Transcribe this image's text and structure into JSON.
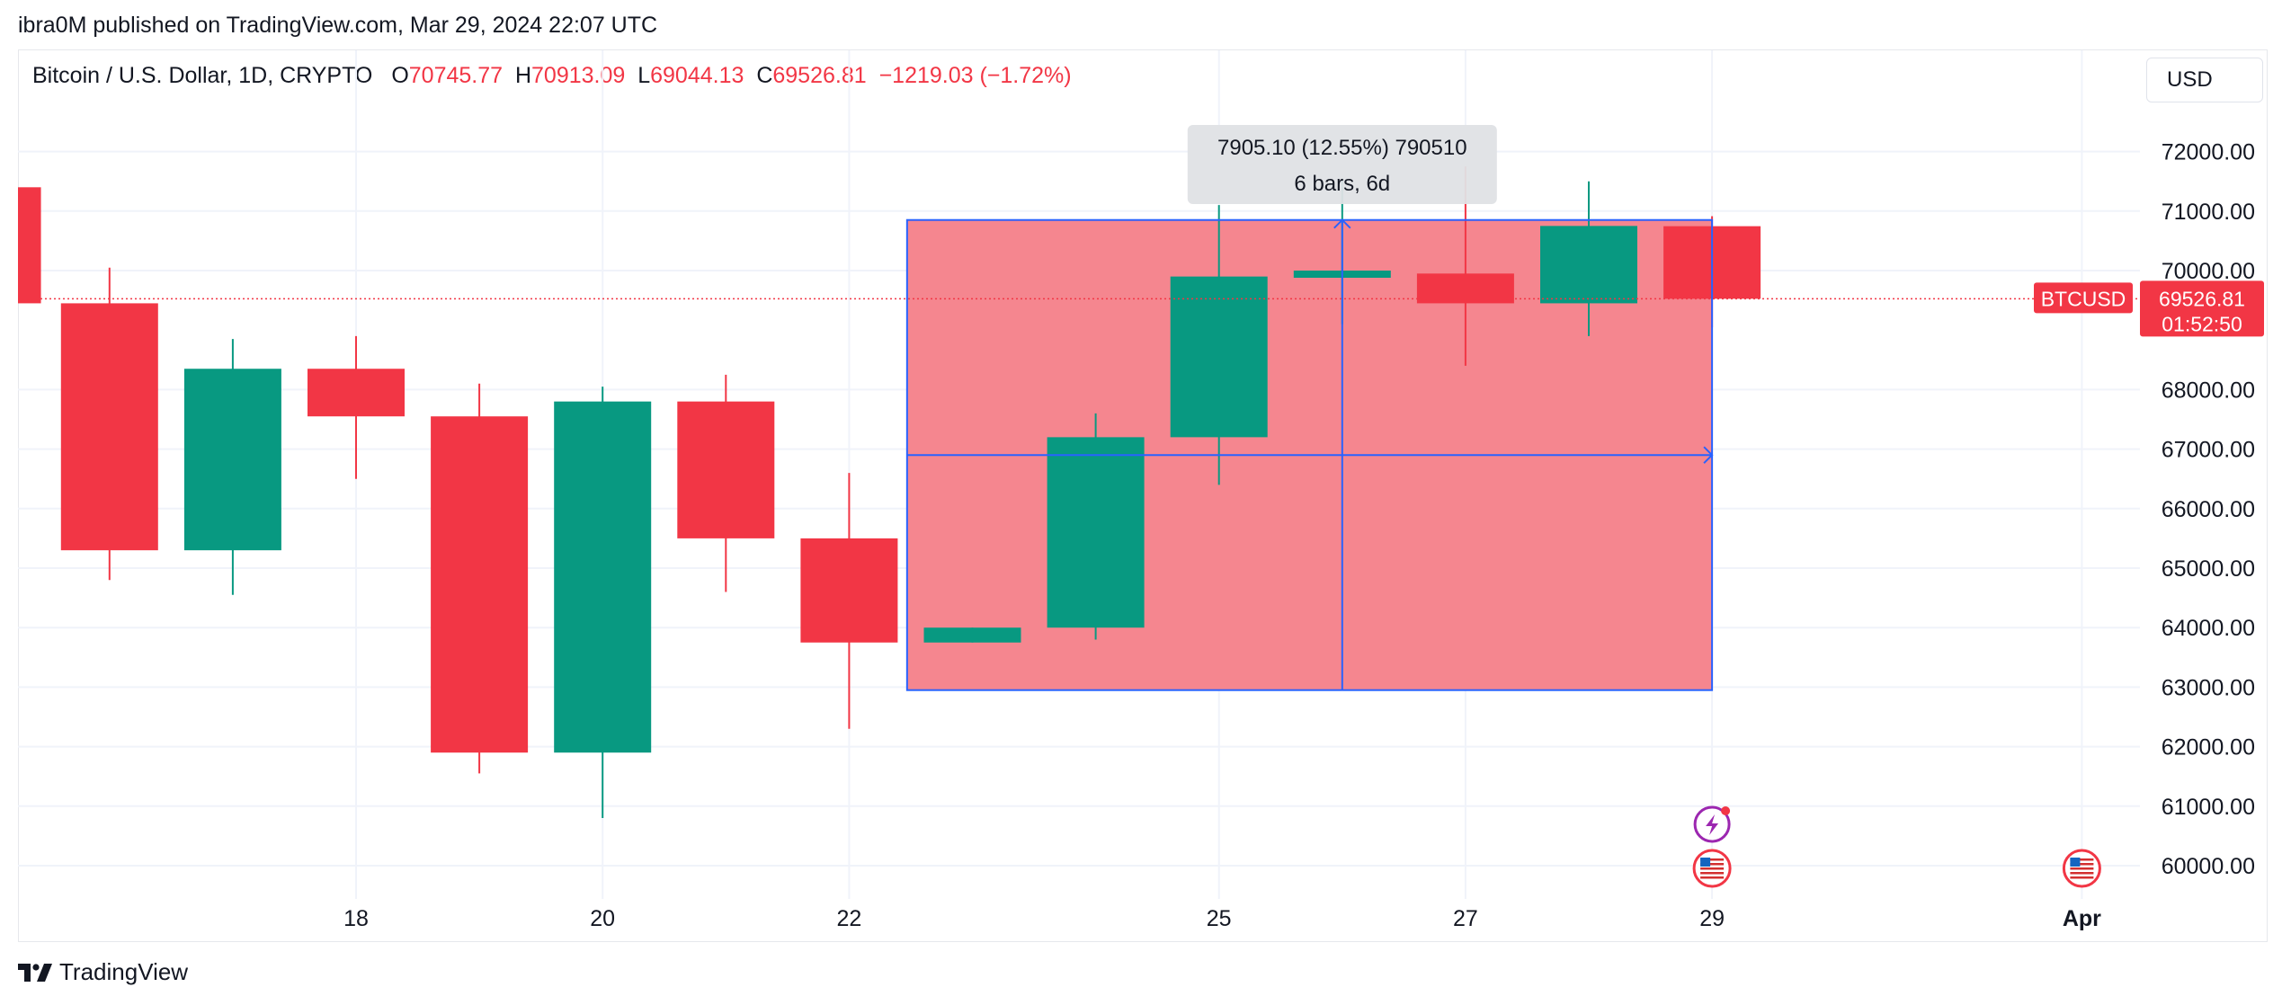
{
  "header": {
    "published": "ibra0M published on TradingView.com, Mar 29, 2024 22:07 UTC"
  },
  "legend": {
    "symbol": "Bitcoin / U.S. Dollar, 1D, CRYPTO",
    "o_label": "O",
    "o_value": "70745.77",
    "h_label": "H",
    "h_value": "70913.09",
    "l_label": "L",
    "l_value": "69044.13",
    "c_label": "C",
    "c_value": "69526.81",
    "change": "−1219.03 (−1.72%)"
  },
  "currency_button": "USD",
  "price_tag": {
    "symbol": "BTCUSD",
    "price": "69526.81",
    "countdown": "01:52:50"
  },
  "measure_tooltip": {
    "line1": "7905.10 (12.55%) 790510",
    "line2": "6 bars, 6d"
  },
  "footer": {
    "brand": "TradingView"
  },
  "colors": {
    "up": "#089981",
    "down": "#f23645",
    "measure_fill": "#f5868f",
    "measure_line": "#2962ff",
    "grid": "#f0f3fa"
  },
  "chart_data": {
    "type": "candlestick",
    "y_ticks": [
      "72000.00",
      "71000.00",
      "70000.00",
      "68000.00",
      "67000.00",
      "66000.00",
      "65000.00",
      "64000.00",
      "63000.00",
      "62000.00",
      "61000.00",
      "60000.00"
    ],
    "x_ticks": [
      {
        "label": "18",
        "day": 18
      },
      {
        "label": "20",
        "day": 20
      },
      {
        "label": "22",
        "day": 22
      },
      {
        "label": "25",
        "day": 25
      },
      {
        "label": "27",
        "day": 27
      },
      {
        "label": "29",
        "day": 29
      },
      {
        "label": "Apr",
        "day": 32
      }
    ],
    "ylim": [
      59500,
      73200
    ],
    "candles": [
      {
        "day": 15.05,
        "open": 71400,
        "high": 71400,
        "low": 69500,
        "close": 69450
      },
      {
        "day": 16,
        "open": 69450,
        "high": 70050,
        "low": 64800,
        "close": 65300
      },
      {
        "day": 17,
        "open": 65300,
        "high": 68850,
        "low": 64550,
        "close": 68350
      },
      {
        "day": 18,
        "open": 68350,
        "high": 68900,
        "low": 66500,
        "close": 67550
      },
      {
        "day": 19,
        "open": 67550,
        "high": 68100,
        "low": 61550,
        "close": 61900
      },
      {
        "day": 20,
        "open": 61900,
        "high": 68050,
        "low": 60800,
        "close": 67800
      },
      {
        "day": 21,
        "open": 67800,
        "high": 68250,
        "low": 64600,
        "close": 65500
      },
      {
        "day": 22,
        "open": 65500,
        "high": 66600,
        "low": 62300,
        "close": 63750
      },
      {
        "day": 23,
        "open": 63750,
        "high": 64000,
        "low": 63750,
        "close": 64000
      },
      {
        "day": 24,
        "open": 64000,
        "high": 67600,
        "low": 63800,
        "close": 67200
      },
      {
        "day": 25,
        "open": 67200,
        "high": 71100,
        "low": 66400,
        "close": 69900
      },
      {
        "day": 26,
        "open": 69900,
        "high": 71550,
        "low": 69100,
        "close": 70000
      },
      {
        "day": 27,
        "open": 69950,
        "high": 71750,
        "low": 68400,
        "close": 69450
      },
      {
        "day": 28,
        "open": 69450,
        "high": 71500,
        "low": 68900,
        "close": 70750
      },
      {
        "day": 29,
        "open": 70745.77,
        "high": 70913.09,
        "low": 69044.13,
        "close": 69526.81
      }
    ],
    "measure": {
      "from_day": 23,
      "to_day": 29,
      "low": 62950,
      "high": 70850,
      "mid": 66900
    },
    "last_price": 69526.81,
    "event_icons": [
      {
        "day": 29,
        "kind": "lightning-icon",
        "slot": 0
      },
      {
        "day": 29,
        "kind": "us-flag-icon",
        "slot": 1
      },
      {
        "day": 32,
        "kind": "us-flag-icon",
        "slot": 1
      }
    ]
  }
}
